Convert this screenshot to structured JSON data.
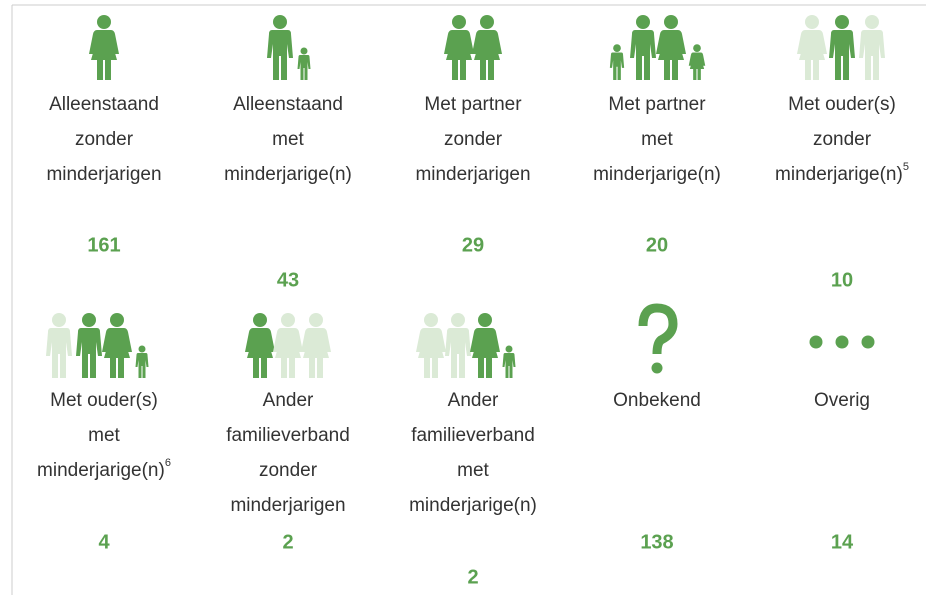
{
  "items": [
    {
      "lines": [
        "Alleenstaand",
        "zonder",
        "minderjarigen"
      ],
      "value": 161
    },
    {
      "lines": [
        "Alleenstaand",
        "met",
        "minderjarige(n)"
      ],
      "value": 43
    },
    {
      "lines": [
        "Met partner",
        "zonder",
        "minderjarigen"
      ],
      "value": 29
    },
    {
      "lines": [
        "Met partner",
        "met",
        "minderjarige(n)"
      ],
      "value": 20
    },
    {
      "lines": [
        "Met ouder(s)",
        "zonder",
        "minderjarige(n)"
      ],
      "note": "5",
      "value": 10
    },
    {
      "lines": [
        "Met ouder(s)",
        "met",
        "minderjarige(n)"
      ],
      "note": "6",
      "value": 4
    },
    {
      "lines": [
        "Ander",
        "familieverband",
        "zonder",
        "minderjarigen"
      ],
      "value": 2
    },
    {
      "lines": [
        "Ander",
        "familieverband",
        "met",
        "minderjarige(n)"
      ],
      "value": 2
    },
    {
      "lines": [
        "Onbekend"
      ],
      "value": 138
    },
    {
      "lines": [
        "Overig"
      ],
      "value": 14
    }
  ]
}
